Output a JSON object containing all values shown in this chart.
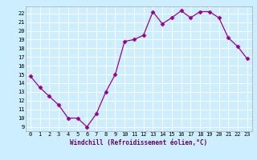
{
  "x": [
    0,
    1,
    2,
    3,
    4,
    5,
    6,
    7,
    8,
    9,
    10,
    11,
    12,
    13,
    14,
    15,
    16,
    17,
    18,
    19,
    20,
    21,
    22,
    23
  ],
  "y": [
    14.8,
    13.5,
    12.5,
    11.5,
    10.0,
    10.0,
    9.0,
    10.5,
    13.0,
    15.0,
    18.8,
    19.0,
    19.5,
    22.2,
    20.8,
    21.5,
    22.3,
    21.5,
    22.2,
    22.2,
    21.5,
    19.2,
    18.2,
    16.8
  ],
  "line_color": "#990099",
  "marker": "D",
  "markersize": 2.5,
  "linewidth": 0.9,
  "bg_color": "#cceeff",
  "grid_color": "#ffffff",
  "xlabel": "Windchill (Refroidissement éolien,°C)",
  "xlim": [
    -0.5,
    23.5
  ],
  "ylim": [
    8.5,
    22.8
  ],
  "yticks": [
    9,
    10,
    11,
    12,
    13,
    14,
    15,
    16,
    17,
    18,
    19,
    20,
    21,
    22
  ],
  "xticks": [
    0,
    1,
    2,
    3,
    4,
    5,
    6,
    7,
    8,
    9,
    10,
    11,
    12,
    13,
    14,
    15,
    16,
    17,
    18,
    19,
    20,
    21,
    22,
    23
  ],
  "tick_fontsize": 5.0,
  "xlabel_fontsize": 5.5
}
